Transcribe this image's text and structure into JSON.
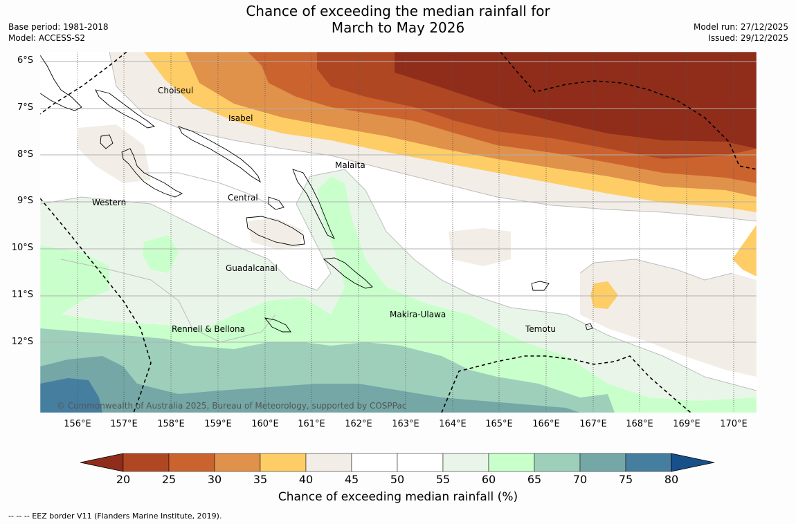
{
  "title": {
    "line1": "Chance of exceeding the median rainfall for",
    "line2": "March to May 2026"
  },
  "meta": {
    "base_period": "Base period: 1981-2018",
    "model": "Model: ACCESS-S2",
    "model_run": "Model run: 27/12/2025",
    "issued": "Issued: 29/12/2025"
  },
  "axes": {
    "lat_labels": [
      "6°S",
      "7°S",
      "8°S",
      "9°S",
      "10°S",
      "11°S",
      "12°S"
    ],
    "lon_labels": [
      "156°E",
      "157°E",
      "158°E",
      "159°E",
      "160°E",
      "161°E",
      "162°E",
      "163°E",
      "164°E",
      "165°E",
      "166°E",
      "167°E",
      "168°E",
      "169°E",
      "170°E"
    ]
  },
  "regions": [
    {
      "name": "Choiseul"
    },
    {
      "name": "Isabel"
    },
    {
      "name": "Malaita"
    },
    {
      "name": "Central"
    },
    {
      "name": "Western"
    },
    {
      "name": "Guadalcanal"
    },
    {
      "name": "Makira-Ulawa"
    },
    {
      "name": "Rennell & Bellona"
    },
    {
      "name": "Temotu"
    }
  ],
  "copyright": "© Commonwealth of Australia 2025, Bureau of Meteorology, supported by COSPPac",
  "colorbar": {
    "title": "Chance of exceeding median rainfall (%)",
    "ticks": [
      "20",
      "25",
      "30",
      "35",
      "40",
      "45",
      "50",
      "55",
      "60",
      "65",
      "70",
      "75",
      "80"
    ],
    "colors": [
      "#8f2d1a",
      "#b04723",
      "#cb632f",
      "#e0914a",
      "#ffcd66",
      "#f2ede6",
      "#ffffff",
      "#ffffff",
      "#eaf5ea",
      "#c9ffcb",
      "#9ecfbb",
      "#74a7a6",
      "#467ea0",
      "#18508a"
    ]
  },
  "footnote": "--  --  -- EEZ border V11 (Flanders Marine Institute, 2019)."
}
